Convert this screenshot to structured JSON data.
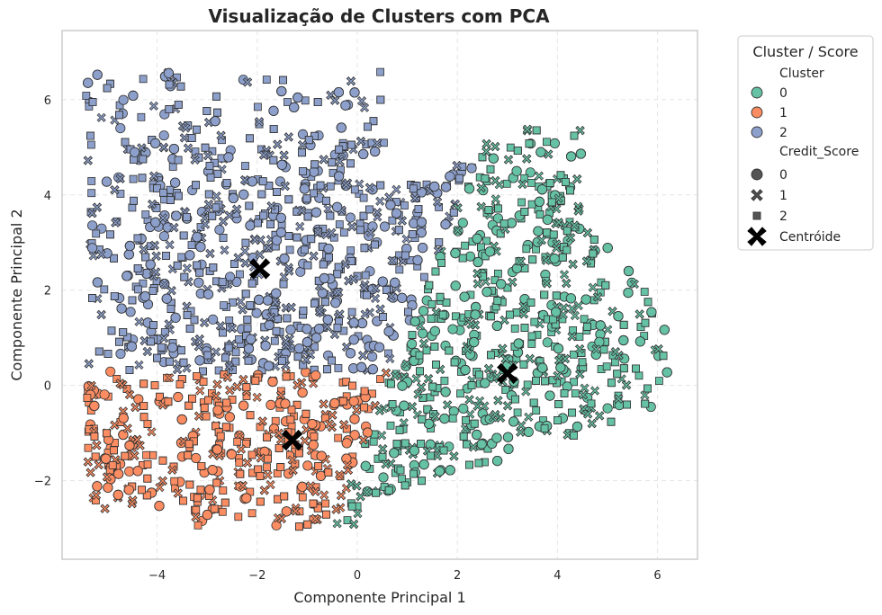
{
  "chart_data": {
    "type": "scatter",
    "title": "Visualização de Clusters com PCA",
    "xlabel": "Componente Principal 1",
    "ylabel": "Componente Principal 2",
    "xlim": [
      -5.9,
      6.8
    ],
    "ylim": [
      -3.65,
      7.45
    ],
    "xticks": [
      -4,
      -2,
      0,
      2,
      4,
      6
    ],
    "yticks": [
      -2,
      0,
      2,
      4,
      6
    ],
    "xtick_labels": [
      "−4",
      "−2",
      "0",
      "2",
      "4",
      "6"
    ],
    "ytick_labels": [
      "−2",
      "0",
      "2",
      "4",
      "6"
    ],
    "grid": true,
    "clusters": [
      {
        "label": "0",
        "color": "#66c2a5",
        "centroid": [
          3.0,
          0.25
        ]
      },
      {
        "label": "1",
        "color": "#fc8d62",
        "centroid": [
          -1.3,
          -1.15
        ]
      },
      {
        "label": "2",
        "color": "#8da0cb",
        "centroid": [
          -1.95,
          2.45
        ]
      }
    ],
    "credit_score_markers": [
      {
        "label": "0",
        "marker": "circle"
      },
      {
        "label": "1",
        "marker": "x"
      },
      {
        "label": "2",
        "marker": "square"
      }
    ],
    "centroid_label": "Centróide",
    "legend": {
      "placement": "outside-top-right",
      "title": "Cluster / Score",
      "cluster_header": "Cluster",
      "score_header": "Credit_Score"
    }
  }
}
